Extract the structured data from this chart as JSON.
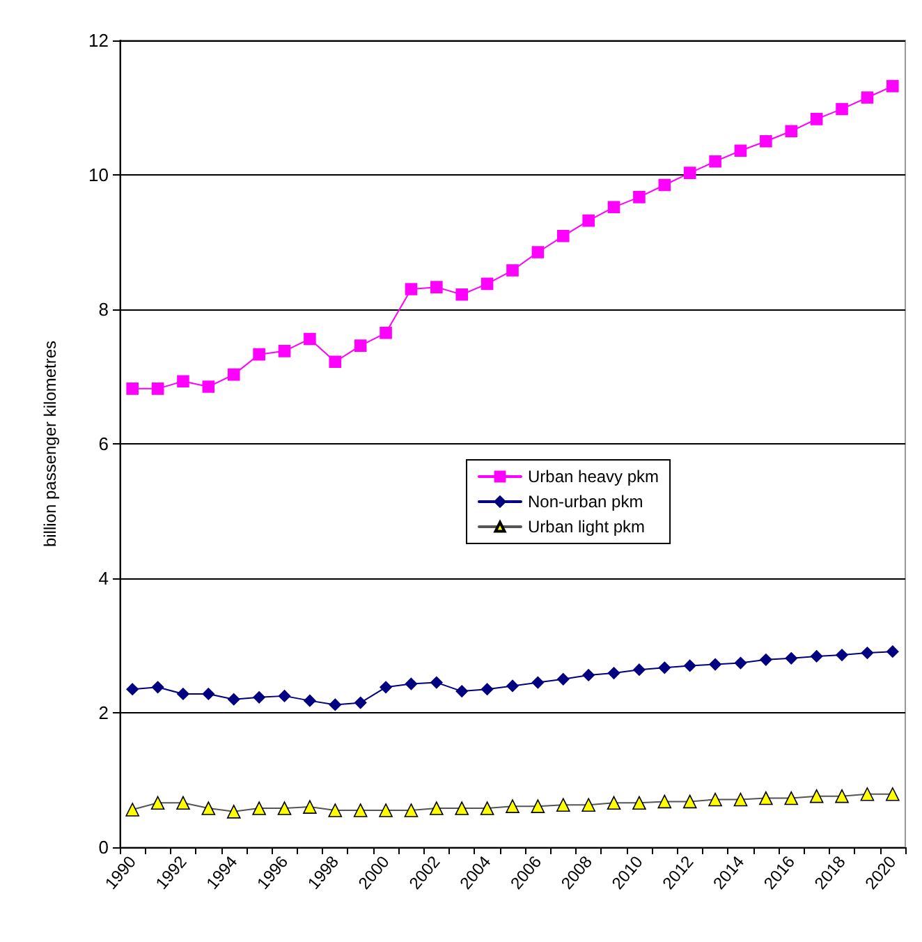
{
  "chart_data": {
    "type": "line",
    "ylabel": "billion passenger kilometres",
    "categories": [
      "1990",
      null,
      "1992",
      null,
      "1994",
      null,
      "1996",
      null,
      "1998",
      null,
      "2000",
      null,
      "2002",
      null,
      "2004",
      null,
      "2006",
      null,
      "2008",
      null,
      "2010",
      null,
      "2012",
      null,
      "2014",
      null,
      "2016",
      null,
      "2018",
      null,
      "2020"
    ],
    "series": [
      {
        "name": "Urban heavy pkm",
        "color": "#ff00ff",
        "marker": "square",
        "values": [
          6.82,
          6.82,
          6.93,
          6.85,
          7.03,
          7.33,
          7.38,
          7.56,
          7.22,
          7.46,
          7.65,
          8.3,
          8.33,
          8.22,
          8.38,
          8.58,
          8.85,
          9.09,
          9.32,
          9.52,
          9.67,
          9.85,
          10.03,
          10.2,
          10.36,
          10.5,
          10.65,
          10.83,
          10.98,
          11.15,
          11.32
        ]
      },
      {
        "name": "Non-urban pkm",
        "color": "#000080",
        "marker": "diamond",
        "values": [
          2.35,
          2.38,
          2.28,
          2.28,
          2.2,
          2.23,
          2.25,
          2.18,
          2.12,
          2.15,
          2.38,
          2.43,
          2.45,
          2.32,
          2.35,
          2.4,
          2.45,
          2.5,
          2.56,
          2.59,
          2.64,
          2.67,
          2.7,
          2.72,
          2.74,
          2.79,
          2.81,
          2.84,
          2.86,
          2.89,
          2.91
        ]
      },
      {
        "name": "Urban light pkm",
        "color": "#ffff00",
        "marker": "triangle",
        "values": [
          0.56,
          0.66,
          0.66,
          0.58,
          0.53,
          0.58,
          0.58,
          0.6,
          0.55,
          0.55,
          0.55,
          0.55,
          0.58,
          0.58,
          0.58,
          0.61,
          0.61,
          0.63,
          0.63,
          0.66,
          0.66,
          0.68,
          0.68,
          0.71,
          0.71,
          0.73,
          0.73,
          0.76,
          0.76,
          0.79,
          0.79
        ]
      }
    ],
    "ylim": [
      0,
      12
    ],
    "yticks": [
      0,
      2,
      4,
      6,
      8,
      10,
      12
    ],
    "grid": "y",
    "legend": "center"
  }
}
